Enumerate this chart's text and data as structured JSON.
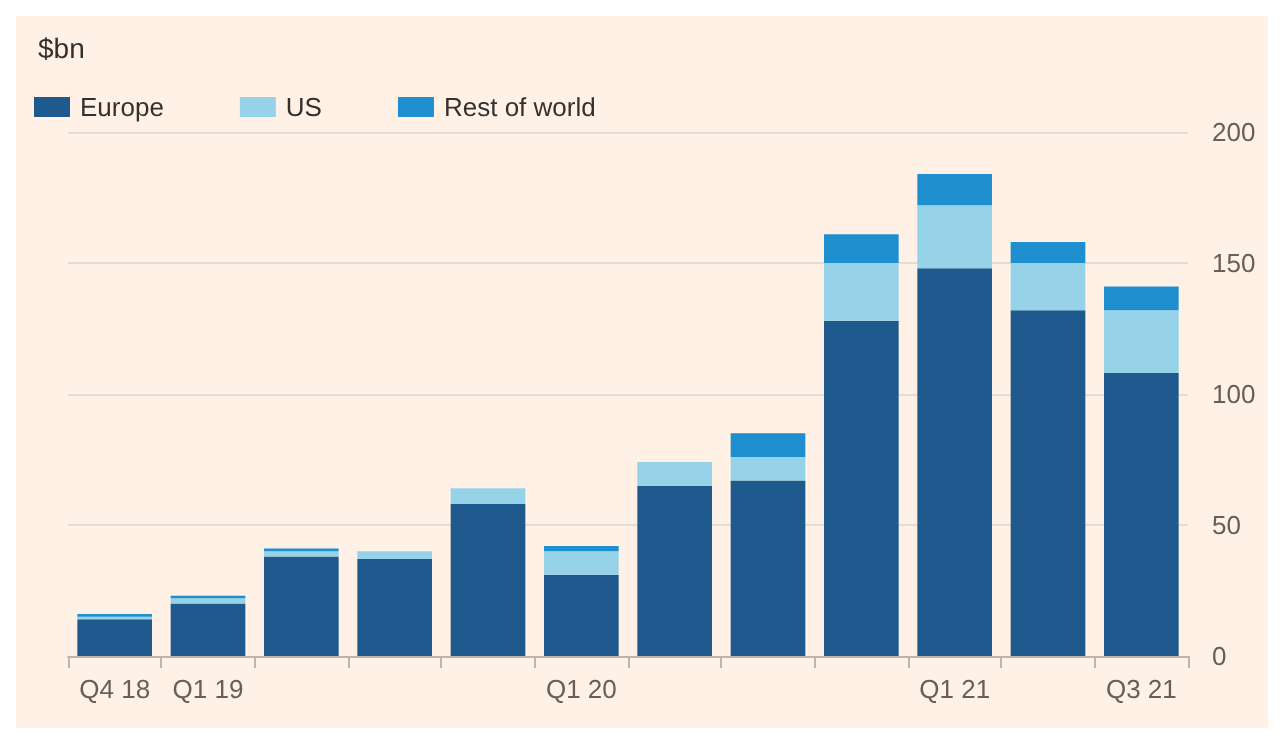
{
  "chart_data": {
    "type": "bar",
    "stacked": true,
    "ylabel": "$bn",
    "categories": [
      "Q4 18",
      "Q1 19",
      null,
      null,
      null,
      "Q1 20",
      null,
      null,
      null,
      "Q1 21",
      null,
      "Q3 21"
    ],
    "series": [
      {
        "name": "Europe",
        "color": "#1f5a8e",
        "values": [
          14,
          20,
          38,
          37,
          58,
          31,
          65,
          67,
          128,
          148,
          132,
          108
        ]
      },
      {
        "name": "US",
        "color": "#96d3e8",
        "values": [
          1,
          2,
          2,
          3,
          6,
          9,
          9,
          9,
          22,
          24,
          18,
          24
        ]
      },
      {
        "name": "Rest of world",
        "color": "#1f8fd0",
        "values": [
          1,
          1,
          1,
          0,
          0,
          2,
          0,
          9,
          11,
          12,
          8,
          9
        ]
      }
    ],
    "ylim": [
      0,
      200
    ],
    "yticks": [
      0,
      50,
      100,
      150,
      200
    ],
    "grid": "y",
    "legend": "top left"
  }
}
